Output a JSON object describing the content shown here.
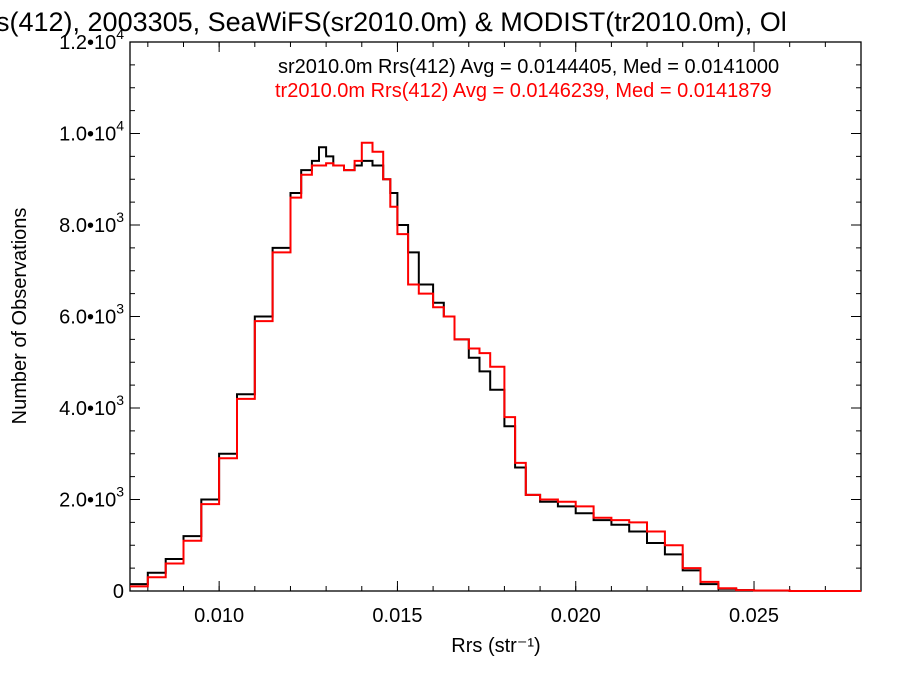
{
  "chart_data": {
    "type": "line",
    "step": true,
    "title": "s(412), 2003305, SeaWiFS(sr2010.0m) & MODIST(tr2010.0m), Ol",
    "xlabel": "Rrs (str⁻¹)",
    "ylabel": "Number of Observations",
    "xlim": [
      0.0075,
      0.028
    ],
    "ylim": [
      0,
      12000
    ],
    "xticks": [
      {
        "value": 0.01,
        "label": "0.010"
      },
      {
        "value": 0.015,
        "label": "0.015"
      },
      {
        "value": 0.02,
        "label": "0.020"
      },
      {
        "value": 0.025,
        "label": "0.025"
      }
    ],
    "yticks": [
      {
        "value": 0,
        "mant": "0",
        "exp": ""
      },
      {
        "value": 2000,
        "mant": "2.0•10",
        "exp": "3"
      },
      {
        "value": 4000,
        "mant": "4.0•10",
        "exp": "3"
      },
      {
        "value": 6000,
        "mant": "6.0•10",
        "exp": "3"
      },
      {
        "value": 8000,
        "mant": "8.0•10",
        "exp": "3"
      },
      {
        "value": 10000,
        "mant": "1.0•10",
        "exp": "4"
      },
      {
        "value": 12000,
        "mant": "1.2•10",
        "exp": "4"
      }
    ],
    "grid": false,
    "legend_position": "top-right",
    "series": [
      {
        "name": "sr2010.0m Rrs(412) Avg = 0.0144405, Med = 0.0141000",
        "color": "#000000",
        "x": [
          0.0075,
          0.008,
          0.0085,
          0.009,
          0.0095,
          0.01,
          0.0105,
          0.011,
          0.0115,
          0.012,
          0.0123,
          0.0126,
          0.0128,
          0.013,
          0.0132,
          0.0135,
          0.0138,
          0.014,
          0.0143,
          0.0146,
          0.0148,
          0.015,
          0.0153,
          0.0156,
          0.016,
          0.0163,
          0.0166,
          0.017,
          0.0173,
          0.0176,
          0.018,
          0.0183,
          0.0186,
          0.019,
          0.0195,
          0.02,
          0.0205,
          0.021,
          0.0215,
          0.022,
          0.0225,
          0.023,
          0.0235,
          0.024,
          0.0245,
          0.025,
          0.026,
          0.027,
          0.028
        ],
        "y": [
          150,
          400,
          700,
          1200,
          2000,
          3000,
          4300,
          6000,
          7500,
          8700,
          9200,
          9400,
          9700,
          9500,
          9300,
          9200,
          9300,
          9400,
          9300,
          9000,
          8700,
          8000,
          7400,
          6700,
          6300,
          6000,
          5500,
          5100,
          4800,
          4400,
          3600,
          2700,
          2100,
          1950,
          1850,
          1700,
          1550,
          1450,
          1300,
          1050,
          800,
          450,
          150,
          50,
          20,
          10,
          0,
          0,
          0
        ]
      },
      {
        "name": "tr2010.0m Rrs(412) Avg = 0.0146239, Med = 0.0141879",
        "color": "#ff0000",
        "x": [
          0.0075,
          0.008,
          0.0085,
          0.009,
          0.0095,
          0.01,
          0.0105,
          0.011,
          0.0115,
          0.012,
          0.0123,
          0.0126,
          0.0128,
          0.013,
          0.0132,
          0.0135,
          0.0138,
          0.014,
          0.0143,
          0.0146,
          0.0148,
          0.015,
          0.0153,
          0.0156,
          0.016,
          0.0163,
          0.0166,
          0.017,
          0.0173,
          0.0176,
          0.018,
          0.0183,
          0.0186,
          0.019,
          0.0195,
          0.02,
          0.0205,
          0.021,
          0.0215,
          0.022,
          0.0225,
          0.023,
          0.0235,
          0.024,
          0.0245,
          0.025,
          0.026,
          0.027,
          0.028
        ],
        "y": [
          100,
          300,
          600,
          1100,
          1900,
          2900,
          4200,
          5900,
          7400,
          8600,
          9100,
          9300,
          9300,
          9350,
          9300,
          9200,
          9400,
          9800,
          9600,
          9000,
          8400,
          7800,
          6700,
          6500,
          6200,
          6000,
          5500,
          5300,
          5200,
          4900,
          3800,
          2800,
          2100,
          2000,
          1950,
          1850,
          1600,
          1550,
          1500,
          1300,
          1000,
          500,
          200,
          60,
          20,
          10,
          0,
          0,
          0
        ]
      }
    ]
  }
}
